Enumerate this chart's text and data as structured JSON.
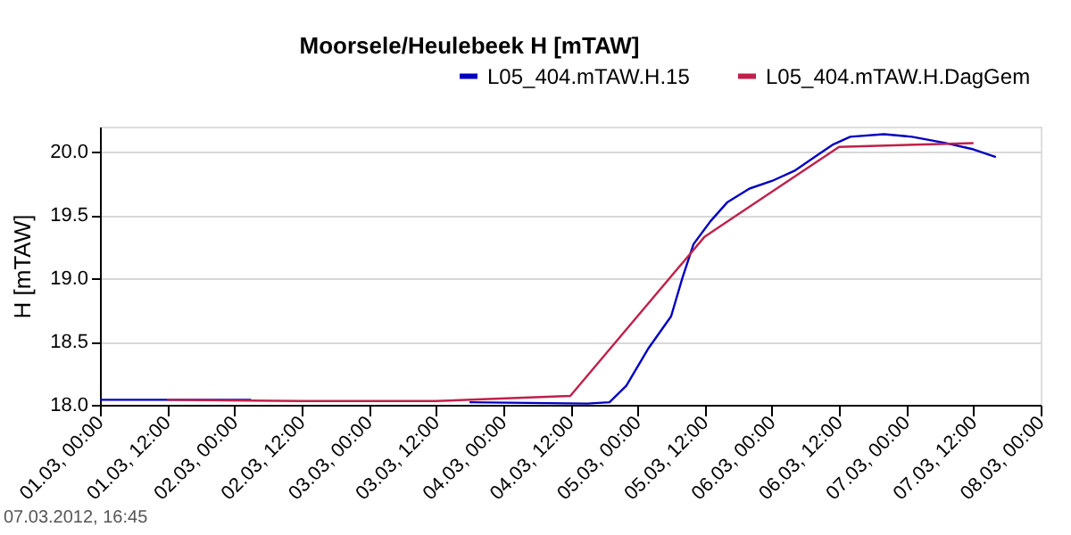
{
  "chart_data": {
    "type": "line",
    "title": "Moorsele/Heulebeek H [mTAW]",
    "ylabel": "H [mTAW]",
    "xlim": [
      "2012-03-01T00:00",
      "2012-03-08T00:00"
    ],
    "ylim": [
      18,
      20.2
    ],
    "xticks": [
      {
        "value": "2012-03-01T00:00",
        "label": "01.03, 00:00"
      },
      {
        "value": "2012-03-01T12:00",
        "label": "01.03, 12:00"
      },
      {
        "value": "2012-03-02T00:00",
        "label": "02.03, 00:00"
      },
      {
        "value": "2012-03-02T12:00",
        "label": "02.03, 12:00"
      },
      {
        "value": "2012-03-03T00:00",
        "label": "03.03, 00:00"
      },
      {
        "value": "2012-03-03T12:00",
        "label": "03.03, 12:00"
      },
      {
        "value": "2012-03-04T00:00",
        "label": "04.03, 00:00"
      },
      {
        "value": "2012-03-04T12:00",
        "label": "04.03, 12:00"
      },
      {
        "value": "2012-03-05T00:00",
        "label": "05.03, 00:00"
      },
      {
        "value": "2012-03-05T12:00",
        "label": "05.03, 12:00"
      },
      {
        "value": "2012-03-06T00:00",
        "label": "06.03, 00:00"
      },
      {
        "value": "2012-03-06T12:00",
        "label": "06.03, 12:00"
      },
      {
        "value": "2012-03-07T00:00",
        "label": "07.03, 00:00"
      },
      {
        "value": "2012-03-07T12:00",
        "label": "07.03, 12:00"
      },
      {
        "value": "2012-03-08T00:00",
        "label": "08.03, 00:00"
      }
    ],
    "yticks": [
      {
        "value": 18,
        "label": "18.0"
      },
      {
        "value": 18.5,
        "label": "18.5"
      },
      {
        "value": 19,
        "label": "19.0"
      },
      {
        "value": 19.5,
        "label": "19.5"
      },
      {
        "value": 20,
        "label": "20.0"
      }
    ],
    "grid": "y",
    "legend": "top right",
    "marker": "none",
    "line_style": "solid",
    "annotations": [
      "07.03.2012, 16:45"
    ],
    "series": [
      {
        "name": "L05_404.mTAW.H.15",
        "color": "#0000c0",
        "x": [
          "2012-03-01T00:00",
          "2012-03-02T03:00",
          "2012-03-02T16:00",
          "2012-03-03T18:00",
          "2012-03-04T15:00",
          "2012-03-04T19:00",
          "2012-03-04T22:00",
          "2012-03-05T02:00",
          "2012-03-05T06:00",
          "2012-03-05T08:00",
          "2012-03-05T10:00",
          "2012-03-05T13:00",
          "2012-03-05T16:00",
          "2012-03-05T20:00",
          "2012-03-06T00:00",
          "2012-03-06T04:00",
          "2012-03-06T08:00",
          "2012-03-06T11:00",
          "2012-03-06T14:00",
          "2012-03-06T20:00",
          "2012-03-07T01:00",
          "2012-03-07T07:00",
          "2012-03-07T12:00",
          "2012-03-07T16:00"
        ],
        "values": [
          18.04,
          18.04,
          null,
          18.02,
          18.01,
          18.02,
          18.15,
          18.45,
          18.7,
          19.0,
          19.27,
          19.45,
          19.6,
          19.71,
          19.77,
          19.85,
          19.97,
          20.06,
          20.12,
          20.14,
          20.12,
          20.07,
          20.02,
          19.96
        ]
      },
      {
        "name": "L05_404.mTAW.H.DagGem",
        "color": "#c0204a",
        "x": [
          "2012-03-01T12:00",
          "2012-03-02T12:00",
          "2012-03-03T12:00",
          "2012-03-04T12:00",
          "2012-03-05T12:00",
          "2012-03-06T12:00",
          "2012-03-07T12:00"
        ],
        "values": [
          18.04,
          18.03,
          18.03,
          18.07,
          19.33,
          20.04,
          20.07
        ]
      }
    ]
  }
}
